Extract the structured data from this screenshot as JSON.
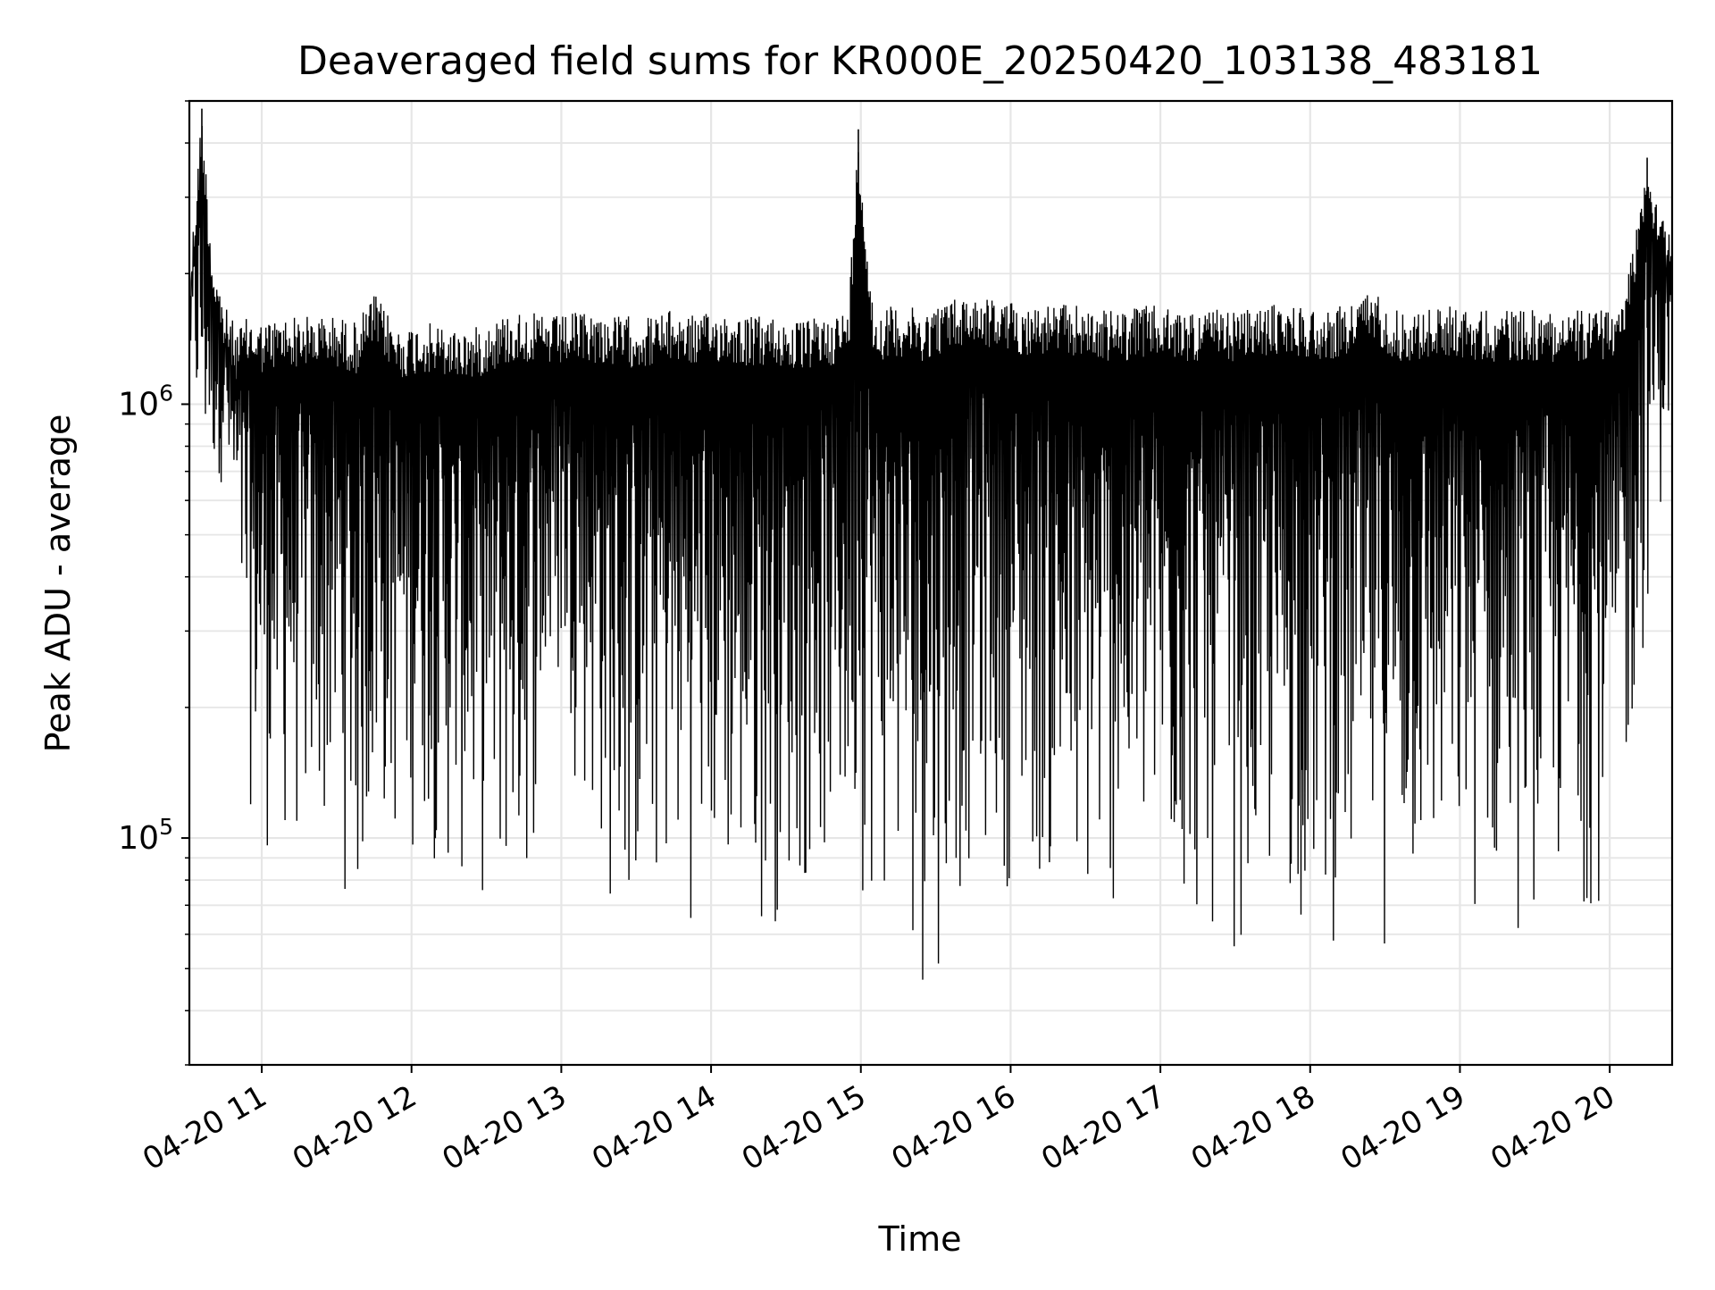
{
  "chart_data": {
    "type": "line",
    "title": "Deaveraged field sums for KR000E_20250420_103138_483181",
    "xlabel": "Time",
    "ylabel": "Peak ADU - average",
    "x_ticks": [
      "04-20 11",
      "04-20 12",
      "04-20 13",
      "04-20 14",
      "04-20 15",
      "04-20 16",
      "04-20 17",
      "04-20 18",
      "04-20 19",
      "04-20 20"
    ],
    "y_ticks": [
      {
        "value": 100000,
        "base": "10",
        "exp": "5"
      },
      {
        "value": 1000000,
        "base": "10",
        "exp": "6"
      }
    ],
    "xlim": [
      "2025-04-20 10:31",
      "2025-04-20 20:25"
    ],
    "ylim": [
      30000,
      5000000
    ],
    "yscale": "log",
    "grid": true,
    "line_color": "#000000",
    "series": [
      {
        "x": [
          "2025-04-20 10:31",
          "2025-04-20 10:36",
          "2025-04-20 10:40",
          "2025-04-20 10:45",
          "2025-04-20 10:50",
          "2025-04-20 10:55",
          "2025-04-20 11:00",
          "2025-04-20 11:10",
          "2025-04-20 11:20",
          "2025-04-20 11:30",
          "2025-04-20 11:38",
          "2025-04-20 11:45",
          "2025-04-20 11:55",
          "2025-04-20 12:05",
          "2025-04-20 12:15",
          "2025-04-20 12:25",
          "2025-04-20 12:35",
          "2025-04-20 12:45",
          "2025-04-20 12:52",
          "2025-04-20 13:00",
          "2025-04-20 13:10",
          "2025-04-20 13:20",
          "2025-04-20 13:26",
          "2025-04-20 13:35",
          "2025-04-20 13:45",
          "2025-04-20 13:55",
          "2025-04-20 14:05",
          "2025-04-20 14:15",
          "2025-04-20 14:25",
          "2025-04-20 14:35",
          "2025-04-20 14:45",
          "2025-04-20 14:55",
          "2025-04-20 14:59",
          "2025-04-20 15:05",
          "2025-04-20 15:15",
          "2025-04-20 15:25",
          "2025-04-20 15:35",
          "2025-04-20 15:45",
          "2025-04-20 15:55",
          "2025-04-20 16:05",
          "2025-04-20 16:15",
          "2025-04-20 16:25",
          "2025-04-20 16:35",
          "2025-04-20 16:45",
          "2025-04-20 16:55",
          "2025-04-20 17:05",
          "2025-04-20 17:15",
          "2025-04-20 17:25",
          "2025-04-20 17:35",
          "2025-04-20 17:45",
          "2025-04-20 17:55",
          "2025-04-20 18:05",
          "2025-04-20 18:15",
          "2025-04-20 18:25",
          "2025-04-20 18:35",
          "2025-04-20 18:45",
          "2025-04-20 18:55",
          "2025-04-20 19:05",
          "2025-04-20 19:15",
          "2025-04-20 19:25",
          "2025-04-20 19:35",
          "2025-04-20 19:45",
          "2025-04-20 19:55",
          "2025-04-20 20:05",
          "2025-04-20 20:15",
          "2025-04-20 20:25"
        ],
        "max": [
          2000000,
          4800000,
          2300000,
          1700000,
          1500000,
          1600000,
          1550000,
          1600000,
          1600000,
          1600000,
          1550000,
          1800000,
          1500000,
          1550000,
          1500000,
          1500000,
          1600000,
          1650000,
          1600000,
          1600000,
          1650000,
          1600000,
          1600000,
          1600000,
          1650000,
          1600000,
          1650000,
          1600000,
          1600000,
          1550000,
          1600000,
          1650000,
          4300000,
          1650000,
          1700000,
          1650000,
          1750000,
          1800000,
          1750000,
          1700000,
          1700000,
          1700000,
          1650000,
          1650000,
          1700000,
          1650000,
          1650000,
          1650000,
          1650000,
          1700000,
          1700000,
          1650000,
          1700000,
          1850000,
          1650000,
          1650000,
          1700000,
          1650000,
          1650000,
          1650000,
          1650000,
          1650000,
          1650000,
          1700000,
          3700000,
          2400000
        ],
        "min": [
          1100000,
          500000,
          600000,
          650000,
          300000,
          110000,
          85000,
          80000,
          78000,
          85000,
          50000,
          85000,
          80000,
          90000,
          68000,
          65000,
          58000,
          60000,
          120000,
          190000,
          100000,
          55000,
          50000,
          60000,
          60000,
          62000,
          62000,
          55000,
          58000,
          65000,
          70000,
          68000,
          75000,
          60000,
          58000,
          40000,
          52000,
          80000,
          75000,
          70000,
          65000,
          48000,
          52000,
          60000,
          62000,
          55000,
          50000,
          52000,
          50000,
          55000,
          55000,
          52000,
          52000,
          50000,
          55000,
          55000,
          58000,
          55000,
          58000,
          55000,
          58000,
          62000,
          65000,
          80000,
          300000,
          900000
        ]
      }
    ]
  }
}
